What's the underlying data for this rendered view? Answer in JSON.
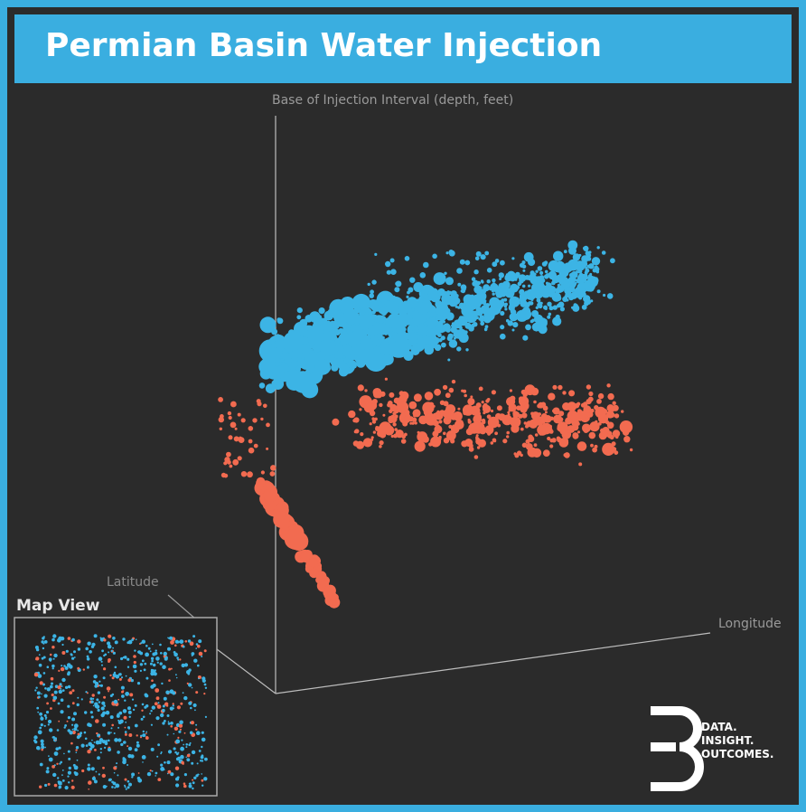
{
  "header": {
    "title": "Permian Basin Water Injection"
  },
  "axes": {
    "vertical": "Base of Injection Interval (depth, feet)",
    "latitude": "Latitude",
    "longitude": "Longitude"
  },
  "inset": {
    "title": "Map View"
  },
  "logo": {
    "lines": [
      "DATA.",
      "INSIGHT.",
      "OUTCOMES."
    ]
  }
}
